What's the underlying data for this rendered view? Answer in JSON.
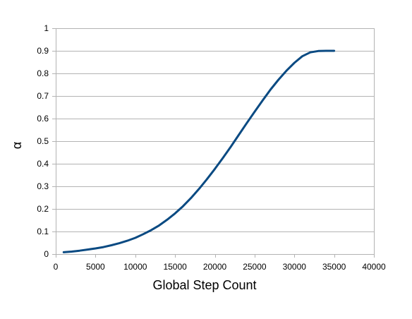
{
  "chart_data": {
    "type": "line",
    "title": "",
    "xlabel": "Global Step Count",
    "ylabel": "α",
    "xlim": [
      0,
      40000
    ],
    "ylim": [
      0,
      1
    ],
    "x_ticks": [
      0,
      5000,
      10000,
      15000,
      20000,
      25000,
      30000,
      35000,
      40000
    ],
    "y_ticks": [
      0,
      0.1,
      0.2,
      0.3,
      0.4,
      0.5,
      0.6,
      0.7,
      0.8,
      0.9,
      1
    ],
    "grid": "horizontal",
    "legend": "none",
    "colors": {
      "line": "#0a4a82",
      "grid": "#b3b3b3",
      "axis": "#b3b3b3"
    },
    "series": [
      {
        "x": [
          1000,
          2000,
          3000,
          4000,
          5000,
          6000,
          7000,
          8000,
          9000,
          10000,
          11000,
          12000,
          13000,
          14000,
          15000,
          16000,
          17000,
          18000,
          19000,
          20000,
          21000,
          22000,
          23000,
          24000,
          25000,
          26000,
          27000,
          28000,
          29000,
          30000,
          31000,
          32000,
          33000,
          34000,
          35000
        ],
        "values": [
          0.008,
          0.011,
          0.015,
          0.02,
          0.025,
          0.031,
          0.039,
          0.048,
          0.059,
          0.072,
          0.088,
          0.106,
          0.127,
          0.152,
          0.18,
          0.212,
          0.248,
          0.288,
          0.331,
          0.377,
          0.425,
          0.475,
          0.527,
          0.579,
          0.63,
          0.68,
          0.728,
          0.772,
          0.812,
          0.847,
          0.876,
          0.893,
          0.899,
          0.9,
          0.9
        ]
      }
    ]
  }
}
